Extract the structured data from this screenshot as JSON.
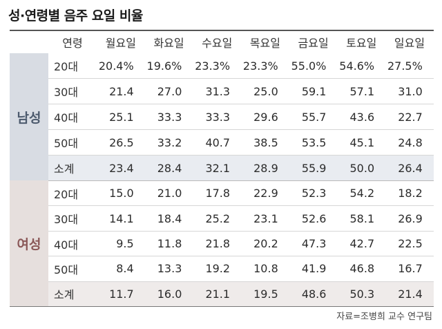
{
  "title": "성·연령별 음주 요일 비율",
  "header": {
    "age_label": "연령",
    "days": [
      "월요일",
      "화요일",
      "수요일",
      "목요일",
      "금요일",
      "토요일",
      "일요일"
    ]
  },
  "male": {
    "label": "남성",
    "rows": [
      {
        "age": "20대",
        "values": [
          "20.4%",
          "19.6%",
          "23.3%",
          "23.3%",
          "55.0%",
          "54.6%",
          "27.5%"
        ]
      },
      {
        "age": "30대",
        "values": [
          "21.4",
          "27.0",
          "31.3",
          "25.0",
          "59.1",
          "57.1",
          "31.0"
        ]
      },
      {
        "age": "40대",
        "values": [
          "25.1",
          "33.3",
          "33.3",
          "29.6",
          "55.7",
          "43.6",
          "22.7"
        ]
      },
      {
        "age": "50대",
        "values": [
          "26.5",
          "33.2",
          "40.7",
          "38.5",
          "53.5",
          "45.1",
          "24.8"
        ]
      },
      {
        "age": "소계",
        "values": [
          "23.4",
          "28.4",
          "32.1",
          "28.9",
          "55.9",
          "50.0",
          "26.4"
        ]
      }
    ]
  },
  "female": {
    "label": "여성",
    "rows": [
      {
        "age": "20대",
        "values": [
          "15.0",
          "21.0",
          "17.8",
          "22.9",
          "52.3",
          "54.2",
          "18.2"
        ]
      },
      {
        "age": "30대",
        "values": [
          "14.1",
          "18.4",
          "25.2",
          "23.1",
          "52.6",
          "58.1",
          "26.9"
        ]
      },
      {
        "age": "40대",
        "values": [
          "9.5",
          "11.8",
          "21.8",
          "20.2",
          "47.3",
          "42.7",
          "22.5"
        ]
      },
      {
        "age": "50대",
        "values": [
          "8.4",
          "13.3",
          "19.2",
          "10.8",
          "41.9",
          "46.8",
          "16.7"
        ]
      },
      {
        "age": "소계",
        "values": [
          "11.7",
          "16.0",
          "21.1",
          "19.5",
          "48.6",
          "50.3",
          "21.4"
        ]
      }
    ]
  },
  "source": "자료=조병희 교수 연구팀",
  "colors": {
    "male_label_bg": "#d8dce3",
    "male_label_text": "#4c5a6d",
    "female_label_bg": "#e6dfdd",
    "female_label_text": "#8a5757",
    "male_subtotal_bg": "#e9ecf1",
    "female_subtotal_bg": "#efebea"
  }
}
